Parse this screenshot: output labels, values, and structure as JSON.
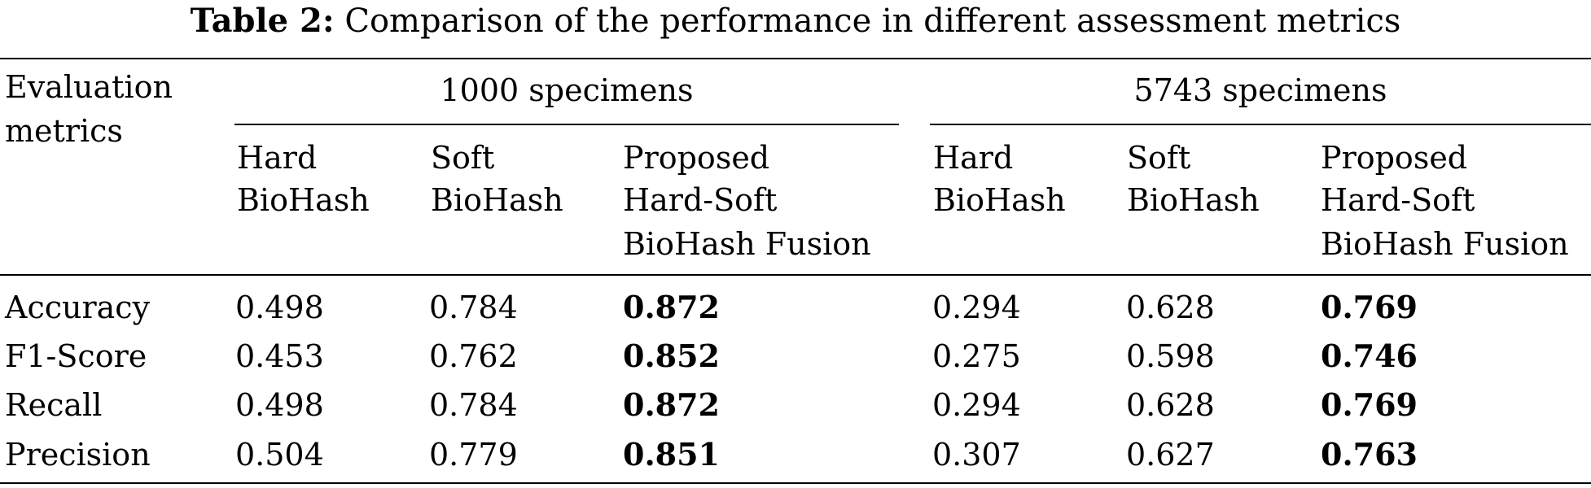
{
  "caption": {
    "label": "Table 2:",
    "text": "Comparison of the performance in different assessment metrics"
  },
  "table": {
    "row_header": [
      "Evaluation",
      "metrics"
    ],
    "groups": [
      {
        "title": "1000 specimens",
        "columns": [
          [
            "Hard",
            "BioHash"
          ],
          [
            "Soft",
            "BioHash"
          ],
          [
            "Proposed",
            "Hard-Soft",
            "BioHash Fusion"
          ]
        ]
      },
      {
        "title": "5743 specimens",
        "columns": [
          [
            "Hard",
            "BioHash"
          ],
          [
            "Soft",
            "BioHash"
          ],
          [
            "Proposed",
            "Hard-Soft",
            "BioHash Fusion"
          ]
        ]
      }
    ],
    "rows": [
      {
        "metric": "Accuracy",
        "values": [
          "0.498",
          "0.784",
          "0.872",
          "0.294",
          "0.628",
          "0.769"
        ]
      },
      {
        "metric": "F1-Score",
        "values": [
          "0.453",
          "0.762",
          "0.852",
          "0.275",
          "0.598",
          "0.746"
        ]
      },
      {
        "metric": "Recall",
        "values": [
          "0.498",
          "0.784",
          "0.872",
          "0.294",
          "0.628",
          "0.769"
        ]
      },
      {
        "metric": "Precision",
        "values": [
          "0.504",
          "0.779",
          "0.851",
          "0.307",
          "0.627",
          "0.763"
        ]
      }
    ],
    "best_column_note": "bold"
  }
}
